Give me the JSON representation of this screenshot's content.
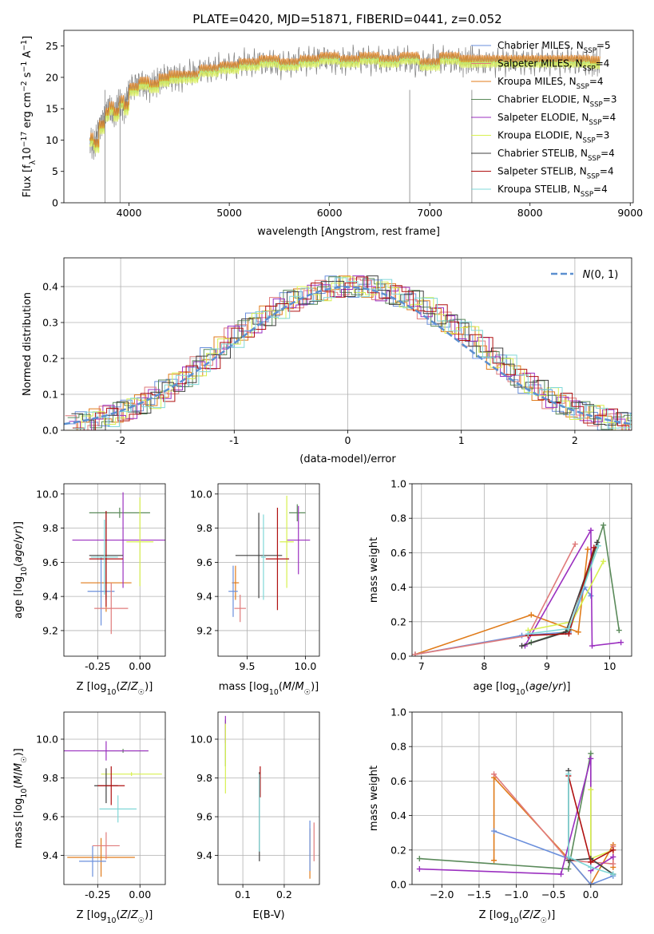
{
  "figure": {
    "title": "PLATE=0420, MJD=51871, FIBERID=0441, z=0.052",
    "colors": {
      "Chabrier MILES": "#6a8fdc",
      "Salpeter MILES": "#e07b7b",
      "Kroupa MILES": "#e07b1a",
      "Chabrier ELODIE": "#5a8a5a",
      "Salpeter ELODIE": "#9b30c0",
      "Kroupa ELODIE": "#d8f050",
      "Chabrier STELIB": "#404040",
      "Salpeter STELIB": "#b01010",
      "Kroupa STELIB": "#80d8d8",
      "data": "#808080",
      "gaussian": "#5b8fd0",
      "pink": "#e080c0"
    }
  },
  "chart_data": [
    {
      "id": "spectrum",
      "type": "line",
      "title": "PLATE=0420, MJD=51871, FIBERID=0441, z=0.052",
      "xlabel": "wavelength [Angstrom, rest frame]",
      "ylabel": "Flux [fλ10⁻¹⁷ erg cm⁻² s⁻¹ A⁻¹]",
      "xlim": [
        3350,
        9030
      ],
      "ylim": [
        0,
        27.5
      ],
      "xticks": [
        4000,
        5000,
        6000,
        7000,
        8000,
        9000
      ],
      "yticks": [
        0,
        5,
        10,
        15,
        20,
        25
      ],
      "grid": false,
      "legend_position": "right",
      "data_curve": {
        "x": [
          3610,
          3650,
          3700,
          3760,
          3800,
          3850,
          3900,
          3950,
          4000,
          4100,
          4200,
          4300,
          4400,
          4500,
          4700,
          4900,
          5100,
          5300,
          5500,
          5700,
          5900,
          6100,
          6300,
          6500,
          6700,
          6900,
          7100,
          7300,
          7420,
          7600,
          7800,
          8000,
          8200,
          8400,
          8600,
          8700
        ],
        "y": [
          10,
          9,
          12,
          14,
          15,
          14,
          16,
          15,
          18,
          19,
          18.5,
          19.5,
          20,
          20,
          21,
          21.5,
          22,
          22.5,
          22,
          22.5,
          23,
          22.5,
          23,
          22.5,
          23,
          22,
          23,
          22.5,
          22.5,
          22.5,
          22.5,
          22.5,
          22.5,
          22.5,
          22.3,
          22.3
        ]
      },
      "legend": [
        {
          "label": "Chabrier MILES, N",
          "sub": "SSP",
          "n": "=5"
        },
        {
          "label": "Salpeter MILES, N",
          "sub": "SSP",
          "n": "=4"
        },
        {
          "label": "Kroupa MILES, N",
          "sub": "SSP",
          "n": "=4"
        },
        {
          "label": "Chabrier ELODIE, N",
          "sub": "SSP",
          "n": "=3"
        },
        {
          "label": "Salpeter ELODIE, N",
          "sub": "SSP",
          "n": "=4"
        },
        {
          "label": "Kroupa ELODIE, N",
          "sub": "SSP",
          "n": "=3"
        },
        {
          "label": "Chabrier STELIB, N",
          "sub": "SSP",
          "n": "=4"
        },
        {
          "label": "Salpeter STELIB, N",
          "sub": "SSP",
          "n": "=4"
        },
        {
          "label": "Kroupa STELIB, N",
          "sub": "SSP",
          "n": "=4"
        }
      ]
    },
    {
      "id": "residuals",
      "type": "line",
      "xlabel": "(data-model)/error",
      "ylabel": "Normed distribution",
      "xlim": [
        -2.5,
        2.5
      ],
      "ylim": [
        0,
        0.48
      ],
      "xticks": [
        -2,
        -1,
        0,
        1,
        2
      ],
      "yticks": [
        0.0,
        0.1,
        0.2,
        0.3,
        0.4
      ],
      "grid": true,
      "legend_position": "top-right",
      "gaussian_label": "N(0,1)",
      "bins": [
        -2.5,
        -2.4,
        -2.3,
        -2.2,
        -2.1,
        -2.0,
        -1.9,
        -1.8,
        -1.7,
        -1.6,
        -1.5,
        -1.4,
        -1.3,
        -1.2,
        -1.1,
        -1.0,
        -0.9,
        -0.8,
        -0.7,
        -0.6,
        -0.5,
        -0.4,
        -0.3,
        -0.2,
        -0.1,
        0.0,
        0.1,
        0.2,
        0.3,
        0.4,
        0.5,
        0.6,
        0.7,
        0.8,
        0.9,
        1.0,
        1.1,
        1.2,
        1.3,
        1.4,
        1.5,
        1.6,
        1.7,
        1.8,
        1.9,
        2.0,
        2.1,
        2.2,
        2.3,
        2.4,
        2.5
      ],
      "hist_amplitudes": [
        0.018,
        0.022,
        0.03,
        0.04,
        0.05,
        0.06,
        0.075,
        0.09,
        0.11,
        0.13,
        0.15,
        0.18,
        0.2,
        0.23,
        0.26,
        0.28,
        0.3,
        0.32,
        0.34,
        0.36,
        0.37,
        0.38,
        0.39,
        0.4,
        0.4,
        0.4,
        0.4,
        0.39,
        0.38,
        0.37,
        0.36,
        0.34,
        0.32,
        0.3,
        0.28,
        0.26,
        0.23,
        0.2,
        0.18,
        0.15,
        0.13,
        0.11,
        0.09,
        0.075,
        0.06,
        0.05,
        0.04,
        0.03,
        0.022,
        0.018
      ]
    },
    {
      "id": "age_vs_z",
      "type": "scatter",
      "xlabel": "Z [log10(Z/Z☉)]",
      "ylabel": "age [log10(age/yr)]",
      "xlim": [
        -0.45,
        0.15
      ],
      "ylim": [
        9.05,
        10.06
      ],
      "xticks": [
        -0.25,
        0.0
      ],
      "yticks": [
        9.2,
        9.4,
        9.6,
        9.8,
        10.0
      ],
      "points": [
        {
          "series": "Kroupa MILES",
          "x": -0.2,
          "y": 9.48,
          "xerr": 0.15,
          "yerr": 0.17
        },
        {
          "series": "Chabrier MILES",
          "x": -0.23,
          "y": 9.43,
          "xerr": 0.08,
          "yerr": 0.2
        },
        {
          "series": "Salpeter MILES",
          "x": -0.17,
          "y": 9.33,
          "xerr": 0.1,
          "yerr": 0.15
        },
        {
          "series": "Chabrier ELODIE",
          "x": -0.12,
          "y": 9.89,
          "xerr": 0.18,
          "yerr": 0.03
        },
        {
          "series": "Salpeter ELODIE",
          "x": -0.1,
          "y": 9.73,
          "xerr": 0.3,
          "yerr": 0.28
        },
        {
          "series": "Kroupa ELODIE",
          "x": 0.0,
          "y": 9.72,
          "xerr": 0.08,
          "yerr": 0.26
        },
        {
          "series": "Chabrier STELIB",
          "x": -0.2,
          "y": 9.64,
          "xerr": 0.1,
          "yerr": 0.26
        },
        {
          "series": "Salpeter STELIB",
          "x": -0.2,
          "y": 9.62,
          "xerr": 0.1,
          "yerr": 0.28
        },
        {
          "series": "Kroupa STELIB",
          "x": -0.21,
          "y": 9.63,
          "xerr": 0.08,
          "yerr": 0.22
        }
      ]
    },
    {
      "id": "age_vs_mass",
      "type": "scatter",
      "xlabel": "mass [log10(M/M☉)]",
      "ylabel": "",
      "xlim": [
        9.25,
        10.12
      ],
      "ylim": [
        9.05,
        10.06
      ],
      "xticks": [
        9.5,
        10.0
      ],
      "yticks": [
        9.2,
        9.4,
        9.6,
        9.8,
        10.0
      ],
      "points": [
        {
          "series": "Kroupa MILES",
          "x": 9.4,
          "y": 9.48,
          "xerr": 0.03,
          "yerr": 0.1
        },
        {
          "series": "Chabrier MILES",
          "x": 9.38,
          "y": 9.43,
          "xerr": 0.04,
          "yerr": 0.15
        },
        {
          "series": "Salpeter MILES",
          "x": 9.44,
          "y": 9.33,
          "xerr": 0.05,
          "yerr": 0.08
        },
        {
          "series": "Chabrier ELODIE",
          "x": 9.93,
          "y": 9.89,
          "xerr": 0.07,
          "yerr": 0.05
        },
        {
          "series": "Salpeter ELODIE",
          "x": 9.94,
          "y": 9.73,
          "xerr": 0.1,
          "yerr": 0.2
        },
        {
          "series": "Kroupa ELODIE",
          "x": 9.84,
          "y": 9.72,
          "xerr": 0.06,
          "yerr": 0.27
        },
        {
          "series": "Chabrier STELIB",
          "x": 9.6,
          "y": 9.64,
          "xerr": 0.2,
          "yerr": 0.25
        },
        {
          "series": "Salpeter STELIB",
          "x": 9.76,
          "y": 9.62,
          "xerr": 0.1,
          "yerr": 0.3
        },
        {
          "series": "Kroupa STELIB",
          "x": 9.64,
          "y": 9.63,
          "xerr": 0.02,
          "yerr": 0.25
        }
      ]
    },
    {
      "id": "weight_vs_age",
      "type": "line",
      "xlabel": "age [log10(age/yr)]",
      "ylabel": "mass weight",
      "xlim": [
        6.85,
        10.35
      ],
      "ylim": [
        0,
        1.0
      ],
      "xticks": [
        7,
        8,
        9,
        10
      ],
      "yticks": [
        0.0,
        0.2,
        0.4,
        0.6,
        0.8,
        1.0
      ],
      "grid": true,
      "series": [
        {
          "name": "Kroupa MILES",
          "x": [
            6.9,
            8.75,
            9.5,
            9.65
          ],
          "y": [
            0.01,
            0.24,
            0.14,
            0.62
          ]
        },
        {
          "name": "Chabrier MILES",
          "x": [
            6.9,
            8.6,
            9.35,
            9.6,
            9.7
          ],
          "y": [
            0.01,
            0.12,
            0.14,
            0.4,
            0.35
          ]
        },
        {
          "name": "Salpeter MILES",
          "x": [
            6.9,
            8.7,
            9.45
          ],
          "y": [
            0.01,
            0.12,
            0.65
          ]
        },
        {
          "name": "Chabrier ELODIE",
          "x": [
            8.75,
            9.35,
            9.9,
            10.15
          ],
          "y": [
            0.08,
            0.15,
            0.76,
            0.15
          ]
        },
        {
          "name": "Salpeter ELODIE",
          "x": [
            8.65,
            9.7,
            9.72,
            10.18
          ],
          "y": [
            0.06,
            0.73,
            0.06,
            0.08
          ]
        },
        {
          "name": "Kroupa ELODIE",
          "x": [
            8.7,
            9.4,
            9.9
          ],
          "y": [
            0.15,
            0.2,
            0.55
          ]
        },
        {
          "name": "Chabrier STELIB",
          "x": [
            8.6,
            9.3,
            9.8
          ],
          "y": [
            0.06,
            0.14,
            0.66
          ]
        },
        {
          "name": "Salpeter STELIB",
          "x": [
            8.7,
            9.35,
            9.75
          ],
          "y": [
            0.12,
            0.13,
            0.63
          ]
        },
        {
          "name": "Kroupa STELIB",
          "x": [
            8.7,
            9.35,
            9.82
          ],
          "y": [
            0.13,
            0.16,
            0.64
          ]
        }
      ]
    },
    {
      "id": "mass_vs_z",
      "type": "scatter",
      "xlabel": "Z [log10(Z/Z☉)]",
      "ylabel": "mass [log10(M/M☉)]",
      "xlim": [
        -0.45,
        0.15
      ],
      "ylim": [
        9.25,
        10.14
      ],
      "xticks": [
        -0.25,
        0.0
      ],
      "yticks": [
        9.4,
        9.6,
        9.8,
        10.0
      ],
      "points": [
        {
          "series": "Kroupa MILES",
          "x": -0.23,
          "y": 9.39,
          "xerr": 0.2,
          "yerr": 0.1
        },
        {
          "series": "Chabrier MILES",
          "x": -0.28,
          "y": 9.37,
          "xerr": 0.08,
          "yerr": 0.08
        },
        {
          "series": "Salpeter MILES",
          "x": -0.2,
          "y": 9.45,
          "xerr": 0.08,
          "yerr": 0.07
        },
        {
          "series": "Chabrier ELODIE",
          "x": -0.1,
          "y": 9.94,
          "xerr": 0.15,
          "yerr": 0.01
        },
        {
          "series": "Salpeter ELODIE",
          "x": -0.2,
          "y": 9.94,
          "xerr": 0.25,
          "yerr": 0.05
        },
        {
          "series": "Kroupa ELODIE",
          "x": -0.05,
          "y": 9.82,
          "xerr": 0.18,
          "yerr": 0.01
        },
        {
          "series": "Chabrier STELIB",
          "x": -0.2,
          "y": 9.76,
          "xerr": 0.07,
          "yerr": 0.09
        },
        {
          "series": "Salpeter STELIB",
          "x": -0.17,
          "y": 9.76,
          "xerr": 0.08,
          "yerr": 0.1
        },
        {
          "series": "Kroupa STELIB",
          "x": -0.13,
          "y": 9.64,
          "xerr": 0.11,
          "yerr": 0.07
        }
      ]
    },
    {
      "id": "mass_vs_ebv",
      "type": "scatter",
      "xlabel": "E(B-V)",
      "ylabel": "",
      "xlim": [
        0.04,
        0.285
      ],
      "ylim": [
        9.25,
        10.14
      ],
      "xticks": [
        0.1,
        0.2
      ],
      "yticks": [
        9.4,
        9.6,
        9.8,
        10.0
      ],
      "points": [
        {
          "series": "Kroupa MILES",
          "x": 0.262,
          "y": 9.41,
          "xerr": 0.0,
          "yerr": 0.13
        },
        {
          "series": "Chabrier MILES",
          "x": 0.262,
          "y": 9.45,
          "xerr": 0.0,
          "yerr": 0.13
        },
        {
          "series": "Salpeter MILES",
          "x": 0.272,
          "y": 9.47,
          "xerr": 0.0,
          "yerr": 0.1
        },
        {
          "series": "Chabrier ELODIE",
          "x": 0.058,
          "y": 9.98,
          "xerr": 0.0,
          "yerr": 0.12
        },
        {
          "series": "Salpeter ELODIE",
          "x": 0.058,
          "y": 10.05,
          "xerr": 0.0,
          "yerr": 0.07
        },
        {
          "series": "Kroupa ELODIE",
          "x": 0.058,
          "y": 9.9,
          "xerr": 0.0,
          "yerr": 0.18
        },
        {
          "series": "Chabrier STELIB",
          "x": 0.14,
          "y": 9.6,
          "xerr": 0.0,
          "yerr": 0.23
        },
        {
          "series": "Salpeter STELIB",
          "x": 0.142,
          "y": 9.78,
          "xerr": 0.0,
          "yerr": 0.08
        },
        {
          "series": "Kroupa STELIB",
          "x": 0.14,
          "y": 9.62,
          "xerr": 0.0,
          "yerr": 0.2
        }
      ]
    },
    {
      "id": "weight_vs_z",
      "type": "line",
      "xlabel": "Z [log10(Z/Z☉)]",
      "ylabel": "mass weight",
      "xlim": [
        -2.4,
        0.42
      ],
      "ylim": [
        0,
        1.0
      ],
      "xticks": [
        -2.0,
        -1.5,
        -1.0,
        -0.5,
        0.0
      ],
      "yticks": [
        0.0,
        0.2,
        0.4,
        0.6,
        0.8,
        1.0
      ],
      "grid": true,
      "series": [
        {
          "name": "Kroupa MILES",
          "x": [
            -1.3,
            -1.3,
            -0.3,
            0.0,
            0.3,
            0.3
          ],
          "y": [
            0.14,
            0.62,
            0.15,
            0.0,
            0.23,
            0.1
          ]
        },
        {
          "name": "Chabrier MILES",
          "x": [
            -1.3,
            -0.3,
            0.0,
            0.3
          ],
          "y": [
            0.31,
            0.15,
            0.0,
            0.05
          ]
        },
        {
          "name": "Salpeter MILES",
          "x": [
            -1.3,
            -0.3,
            0.0,
            0.3,
            0.3
          ],
          "y": [
            0.64,
            0.14,
            0.13,
            0.12,
            0.22
          ]
        },
        {
          "name": "Chabrier ELODIE",
          "x": [
            -2.3,
            -0.3,
            0.0,
            0.0,
            0.3
          ],
          "y": [
            0.15,
            0.09,
            0.76,
            0.15,
            0.06
          ]
        },
        {
          "name": "Salpeter ELODIE",
          "x": [
            -2.3,
            -0.4,
            0.0,
            0.0,
            0.3
          ],
          "y": [
            0.09,
            0.06,
            0.73,
            0.08,
            0.16
          ]
        },
        {
          "name": "Kroupa ELODIE",
          "x": [
            0.0,
            0.0,
            0.3
          ],
          "y": [
            0.55,
            0.15,
            0.2
          ]
        },
        {
          "name": "Chabrier STELIB",
          "x": [
            -0.3,
            -0.3,
            0.0,
            0.3
          ],
          "y": [
            0.66,
            0.14,
            0.15,
            0.06
          ]
        },
        {
          "name": "Salpeter STELIB",
          "x": [
            -0.3,
            0.0,
            0.3
          ],
          "y": [
            0.63,
            0.13,
            0.2
          ]
        },
        {
          "name": "Kroupa STELIB",
          "x": [
            -0.3,
            -0.3,
            0.0,
            0.3
          ],
          "y": [
            0.64,
            0.16,
            0.1,
            0.06
          ]
        }
      ]
    }
  ]
}
